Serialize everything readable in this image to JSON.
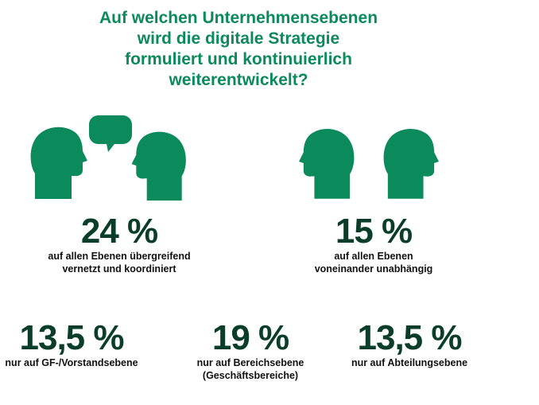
{
  "colors": {
    "accent": "#0b8a5c",
    "value": "#0a3d2a",
    "text": "#111111"
  },
  "title": {
    "lines": [
      "Auf welchen Unternehmensebenen",
      "wird die digitale Strategie",
      "formuliert und kontinuierlich",
      "weiterentwickelt?"
    ]
  },
  "icons": {
    "left_group": [
      "head-left-icon",
      "speech-bubble-icon",
      "head-right-icon"
    ],
    "right_group": [
      "head-left-icon",
      "head-right-icon"
    ]
  },
  "chart_data": {
    "type": "table",
    "title": "Auf welchen Unternehmensebenen wird die digitale Strategie formuliert und kontinuierlich weiterentwickelt?",
    "unit": "%",
    "items": [
      {
        "label": "auf allen Ebenen übergreifend vernetzt und koordiniert",
        "value": 24
      },
      {
        "label": "auf allen Ebenen voneinander unabhängig",
        "value": 15
      },
      {
        "label": "nur auf GF-/Vorstandsebene",
        "value": 13.5
      },
      {
        "label": "nur auf Bereichsebene (Geschäftsbereiche)",
        "value": 19
      },
      {
        "label": "nur auf Abteilungsebene",
        "value": 13.5
      }
    ]
  },
  "stats": [
    {
      "value": "24 %",
      "lines": [
        "auf allen Ebenen übergreifend",
        "vernetzt und koordiniert"
      ]
    },
    {
      "value": "15 %",
      "lines": [
        "auf allen Ebenen",
        "voneinander unabhängig"
      ]
    },
    {
      "value": "13,5 %",
      "lines": [
        "nur auf GF-/Vorstandsebene"
      ]
    },
    {
      "value": "19 %",
      "lines": [
        "nur auf Bereichsebene",
        "(Geschäftsbereiche)"
      ]
    },
    {
      "value": "13,5 %",
      "lines": [
        "nur auf Abteilungsebene"
      ]
    }
  ]
}
